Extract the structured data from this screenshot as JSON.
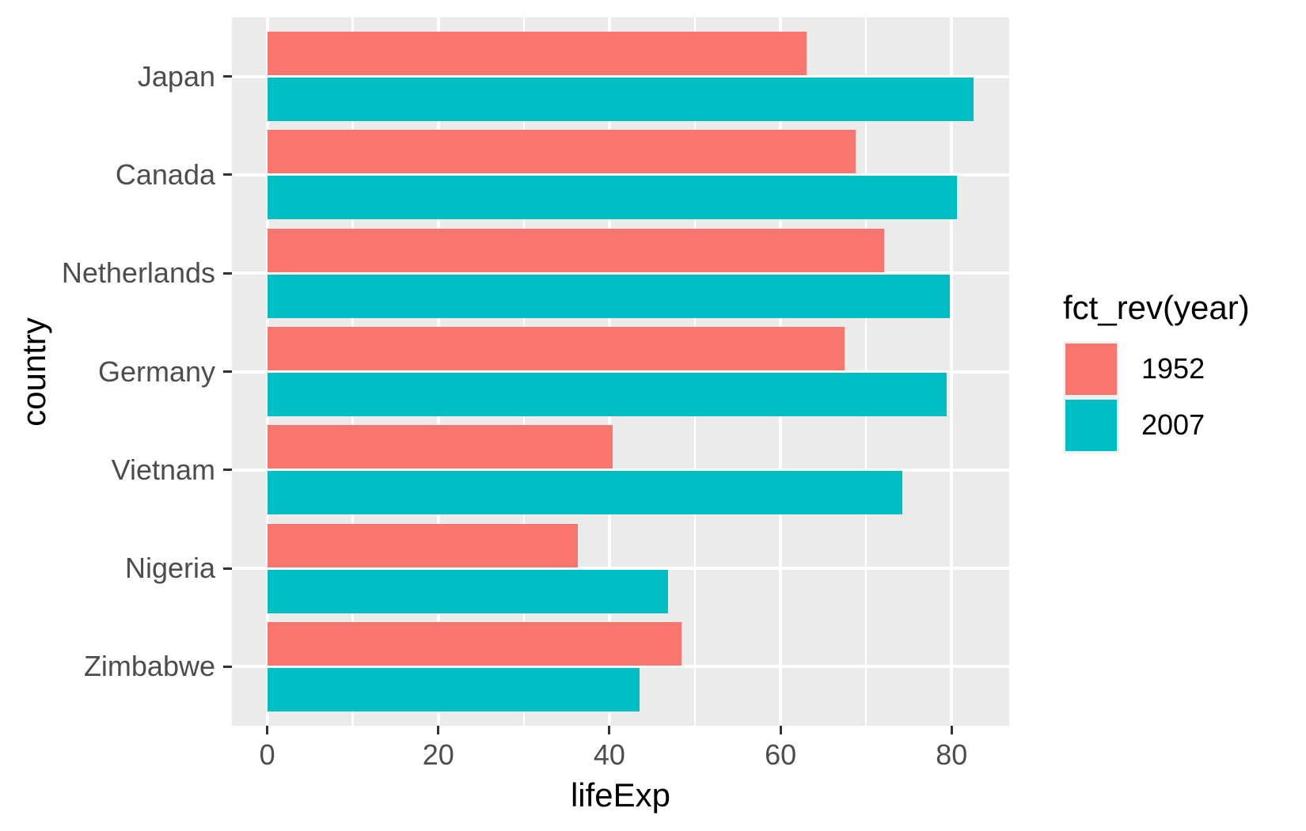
{
  "chart_data": {
    "type": "bar",
    "orientation": "horizontal",
    "title": "",
    "xlabel": "lifeExp",
    "ylabel": "country",
    "categories": [
      "Japan",
      "Canada",
      "Netherlands",
      "Germany",
      "Vietnam",
      "Nigeria",
      "Zimbabwe"
    ],
    "series": [
      {
        "name": "1952",
        "color": "#F8766D",
        "values": [
          63.03,
          68.75,
          72.13,
          67.5,
          40.41,
          36.32,
          48.45
        ]
      },
      {
        "name": "2007",
        "color": "#00BFC4",
        "values": [
          82.6,
          80.65,
          79.76,
          79.41,
          74.25,
          46.86,
          43.49
        ]
      }
    ],
    "x_ticks": [
      0,
      20,
      40,
      60,
      80
    ],
    "x_minor_ticks": [
      10,
      30,
      50,
      70
    ],
    "xlim": [
      -4.13,
      86.73
    ],
    "grid": "white major+minor vertical lines and major horizontal lines on gray panel",
    "legend_title": "fct_rev(year)",
    "legend_position": "right",
    "bar_layout": {
      "group_width": 0.9,
      "bars_per_group": 2,
      "dodged": true
    }
  },
  "style": {
    "figure_bg": "#FFFFFF",
    "panel_bg": "#EBEBEB",
    "grid_color": "#FFFFFF",
    "axis_text_color": "#4D4D4D",
    "axis_title_color": "#000000",
    "tick_mark_color": "#333333",
    "legend_key_bg": "#F2F2F2",
    "legend_text_color": "#000000"
  }
}
